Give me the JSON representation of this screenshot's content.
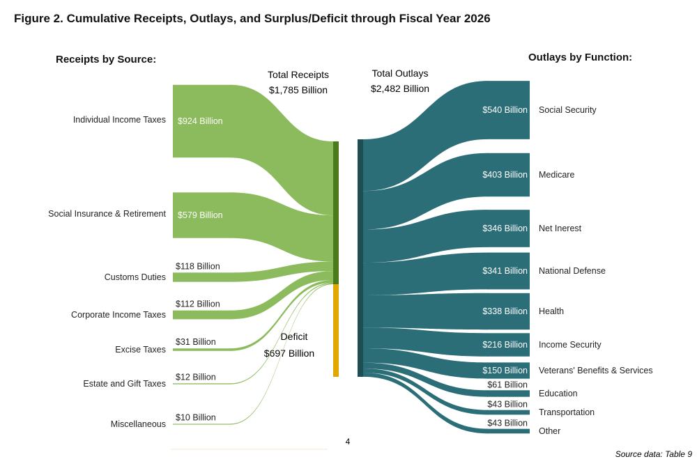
{
  "title": "Figure 2. Cumulative Receipts, Outlays, and Surplus/Deficit through Fiscal Year 2026",
  "receipts_heading": "Receipts by Source:",
  "outlays_heading": "Outlays by Function:",
  "total_receipts": {
    "label": "Total Receipts",
    "value": "$1,785 Billion"
  },
  "total_outlays": {
    "label": "Total Outlays",
    "value": "$2,482 Billion"
  },
  "deficit": {
    "label": "Deficit",
    "value": "$697 Billion"
  },
  "page_number": "4",
  "source_note": "Source data: Table 9",
  "colors": {
    "receipts": "#8bbb5c",
    "receipts_node": "#4b7a1c",
    "deficit": "#e2a600",
    "outlays": "#2c6e78",
    "outlays_node": "#1e4d54"
  },
  "chart_data": {
    "type": "sankey",
    "units": "Billion",
    "receipts": [
      {
        "name": "Individual Income Taxes",
        "value": 924,
        "label": "$924 Billion"
      },
      {
        "name": "Social Insurance & Retirement",
        "value": 579,
        "label": "$579 Billion"
      },
      {
        "name": "Customs Duties",
        "value": 118,
        "label": "$118 Billion"
      },
      {
        "name": "Corporate Income Taxes",
        "value": 112,
        "label": "$112 Billion"
      },
      {
        "name": "Excise Taxes",
        "value": 31,
        "label": "$31 Billion"
      },
      {
        "name": "Estate and Gift Taxes",
        "value": 12,
        "label": "$12 Billion"
      },
      {
        "name": "Miscellaneous",
        "value": 10,
        "label": "$10 Billion"
      }
    ],
    "outlays": [
      {
        "name": "Social Security",
        "value": 540,
        "label": "$540 Billion"
      },
      {
        "name": "Medicare",
        "value": 403,
        "label": "$403 Billion"
      },
      {
        "name": "Net Inerest",
        "value": 346,
        "label": "$346 Billion"
      },
      {
        "name": "National Defense",
        "value": 341,
        "label": "$341 Billion"
      },
      {
        "name": "Health",
        "value": 338,
        "label": "$338 Billion"
      },
      {
        "name": "Income Security",
        "value": 216,
        "label": "$216 Billion"
      },
      {
        "name": "Veterans' Benefits & Services",
        "value": 150,
        "label": "$150 Billion"
      },
      {
        "name": "Education",
        "value": 61,
        "label": "$61 Billion"
      },
      {
        "name": "Transportation",
        "value": 43,
        "label": "$43 Billion"
      },
      {
        "name": "Other",
        "value": 43,
        "label": "$43 Billion"
      }
    ],
    "total_receipts": 1785,
    "total_outlays": 2482,
    "deficit": 697
  }
}
